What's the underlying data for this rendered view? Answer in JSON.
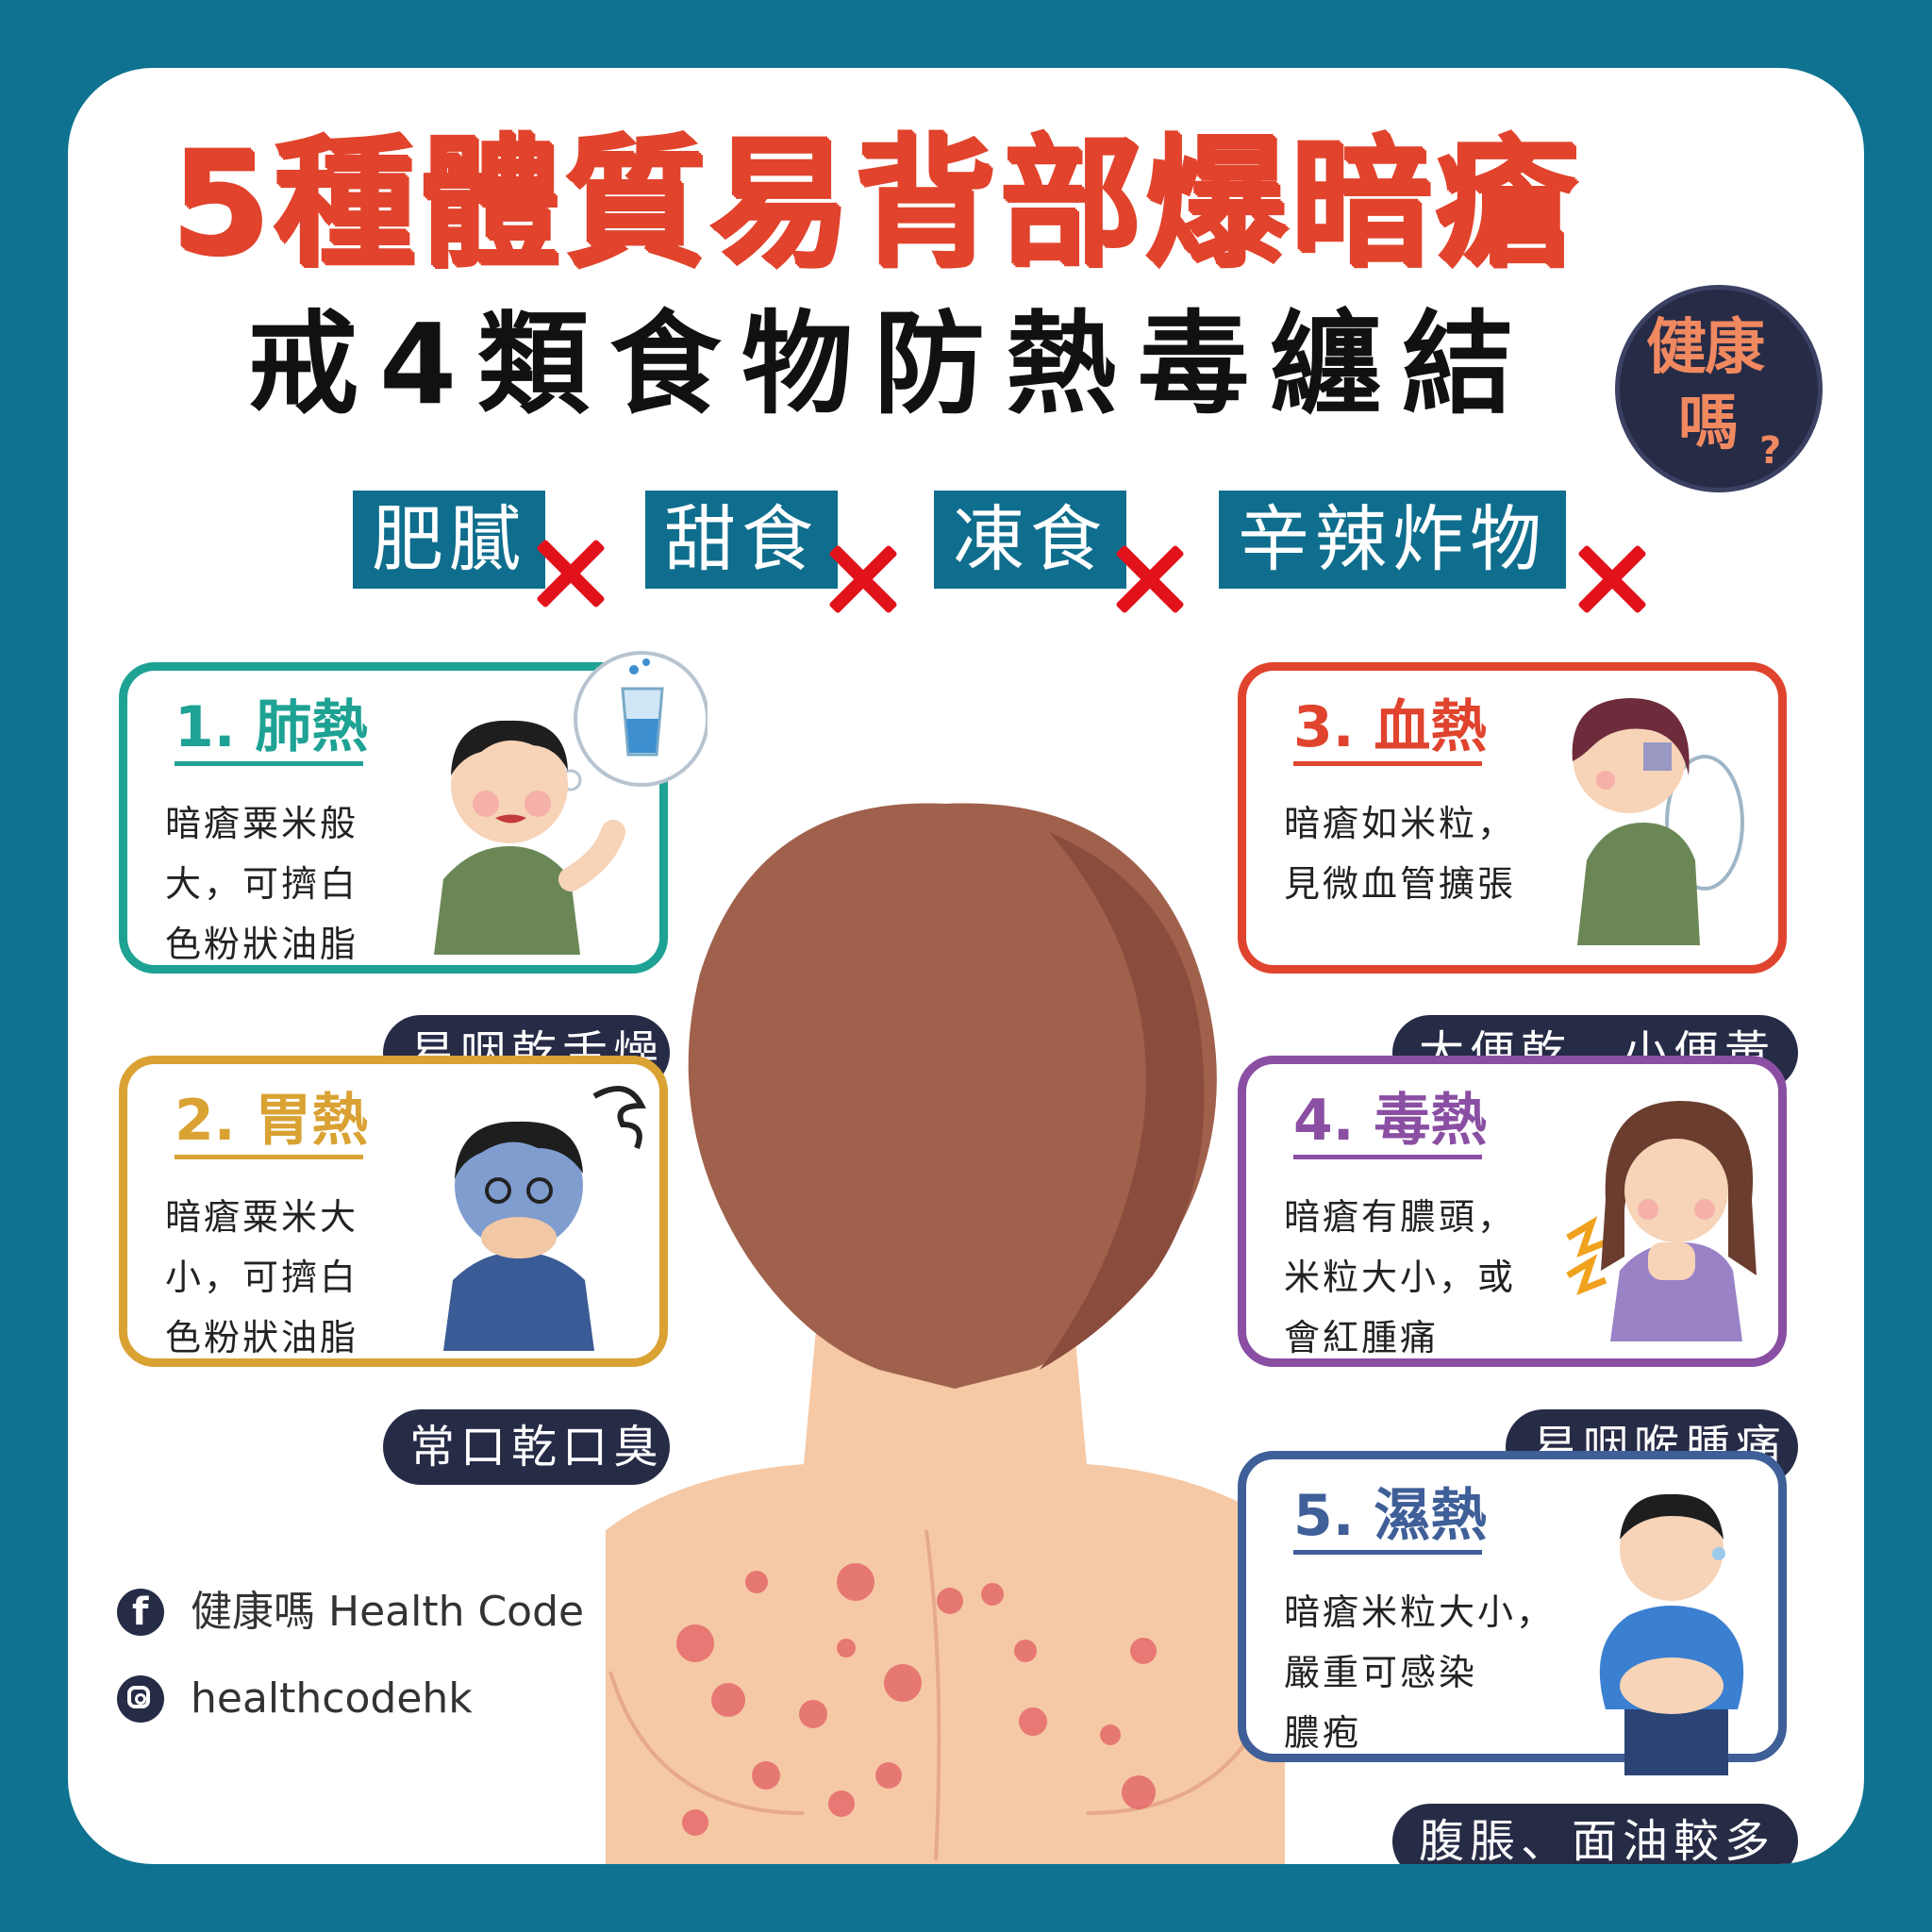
{
  "title": "5種體質易背部爆暗瘡",
  "subtitle": "戒4類食物防熱毒纏結",
  "logo": {
    "line1": "健康",
    "line2": "嗎",
    "mark": "?"
  },
  "foods": [
    "肥膩",
    "甜食",
    "凍食",
    "辛辣炸物"
  ],
  "types": [
    {
      "heading": "1. 肺熱",
      "desc": [
        "暗瘡粟米般",
        "大，可擠白",
        "色粉狀油脂"
      ],
      "symptom": "易咽乾舌燥",
      "color": "#1ea294",
      "icon": "dry-mouth-boy-icon"
    },
    {
      "heading": "2. 胃熱",
      "desc": [
        "暗瘡粟米大",
        "小，可擠白",
        "色粉狀油脂"
      ],
      "symptom": "常口乾口臭",
      "color": "#d9a233",
      "icon": "bad-breath-boy-icon"
    },
    {
      "heading": "3. 血熱",
      "desc": [
        "暗瘡如米粒，",
        "見微血管擴張"
      ],
      "symptom": "大便乾，小便黃",
      "color": "#e0442e",
      "icon": "toilet-woman-icon"
    },
    {
      "heading": "4. 毒熱",
      "desc": [
        "暗瘡有膿頭，",
        "米粒大小，或",
        "會紅腫痛"
      ],
      "symptom": "易咽喉腫痛",
      "color": "#8a4fa3",
      "icon": "sore-throat-woman-icon"
    },
    {
      "heading": "5. 濕熱",
      "desc": [
        "暗瘡米粒大小，",
        "嚴重可感染",
        "膿疱"
      ],
      "symptom": "腹脹、面油較多",
      "color": "#3f5f98",
      "icon": "bloated-man-icon"
    }
  ],
  "social": {
    "facebook": "健康嗎 Health Code",
    "instagram": "healthcodehk"
  },
  "colors": {
    "background": "#0e7290",
    "title": "#e1432c",
    "food_tag": "#0f6e8d",
    "cross": "#e2121b",
    "pill": "#262b46"
  }
}
